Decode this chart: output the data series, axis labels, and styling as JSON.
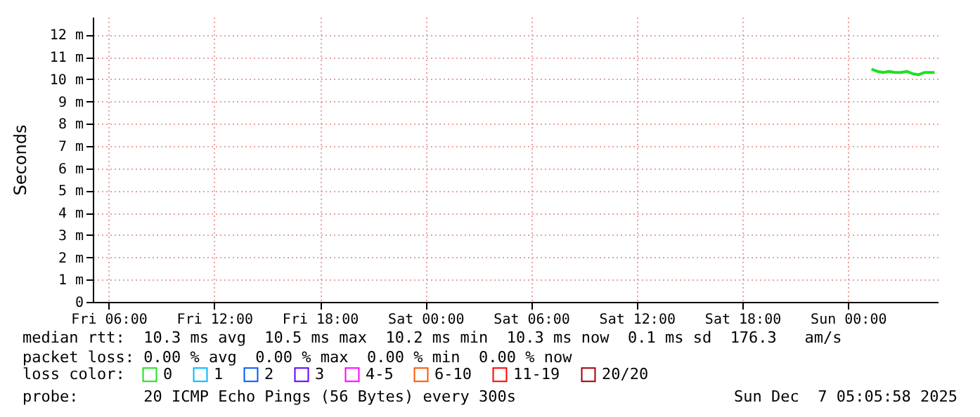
{
  "chart_data": {
    "type": "line",
    "ylabel": "Seconds",
    "x": [
      "2025-12-07T01:20",
      "2025-12-07T01:40",
      "2025-12-07T02:00",
      "2025-12-07T02:20",
      "2025-12-07T02:40",
      "2025-12-07T03:00",
      "2025-12-07T03:20",
      "2025-12-07T03:40",
      "2025-12-07T04:00",
      "2025-12-07T04:20",
      "2025-12-07T04:40",
      "2025-12-07T04:55"
    ],
    "series": [
      {
        "name": "0",
        "color": "#20e020",
        "values": [
          10.45,
          10.35,
          10.3,
          10.35,
          10.3,
          10.3,
          10.35,
          10.25,
          10.2,
          10.3,
          10.3,
          10.3
        ]
      },
      {
        "name": "1",
        "color": "#00b8ff",
        "values": [
          null,
          null,
          null,
          null,
          null,
          null,
          null,
          null,
          null,
          null,
          null,
          null
        ]
      },
      {
        "name": "2",
        "color": "#0059ff",
        "values": [
          null,
          null,
          null,
          null,
          null,
          null,
          null,
          null,
          null,
          null,
          null,
          null
        ]
      },
      {
        "name": "3",
        "color": "#5e00ff",
        "values": [
          null,
          null,
          null,
          null,
          null,
          null,
          null,
          null,
          null,
          null,
          null,
          null
        ]
      },
      {
        "name": "4-5",
        "color": "#ff00ff",
        "values": [
          null,
          null,
          null,
          null,
          null,
          null,
          null,
          null,
          null,
          null,
          null,
          null
        ]
      },
      {
        "name": "6-10",
        "color": "#ff5500",
        "values": [
          null,
          null,
          null,
          null,
          null,
          null,
          null,
          null,
          null,
          null,
          null,
          null
        ]
      },
      {
        "name": "11-19",
        "color": "#ff0000",
        "values": [
          null,
          null,
          null,
          null,
          null,
          null,
          null,
          null,
          null,
          null,
          null,
          null
        ]
      },
      {
        "name": "20/20",
        "color": "#a10000",
        "values": [
          null,
          null,
          null,
          null,
          null,
          null,
          null,
          null,
          null,
          null,
          null,
          null
        ]
      }
    ],
    "legend_title": "loss color:",
    "legend": "bottom",
    "grid": true,
    "xlim": [
      "2025-12-05T05:06",
      "2025-12-07T05:06"
    ],
    "xticks": [
      {
        "value": "2025-12-05T06:00",
        "label": "Fri 06:00"
      },
      {
        "value": "2025-12-05T12:00",
        "label": "Fri 12:00"
      },
      {
        "value": "2025-12-05T18:00",
        "label": "Fri 18:00"
      },
      {
        "value": "2025-12-06T00:00",
        "label": "Sat 00:00"
      },
      {
        "value": "2025-12-06T06:00",
        "label": "Sat 06:00"
      },
      {
        "value": "2025-12-06T12:00",
        "label": "Sat 12:00"
      },
      {
        "value": "2025-12-06T18:00",
        "label": "Sat 18:00"
      },
      {
        "value": "2025-12-07T00:00",
        "label": "Sun 00:00"
      }
    ],
    "ylim": [
      0,
      12.8
    ],
    "yticks": [
      0,
      {
        "value": 1,
        "label": "1 m"
      },
      {
        "value": 2,
        "label": "2 m"
      },
      {
        "value": 3,
        "label": "3 m"
      },
      {
        "value": 4,
        "label": "4 m"
      },
      {
        "value": 5,
        "label": "5 m"
      },
      {
        "value": 6,
        "label": "6 m"
      },
      {
        "value": 7,
        "label": "7 m"
      },
      {
        "value": 8,
        "label": "8 m"
      },
      {
        "value": 9,
        "label": "9 m"
      },
      {
        "value": 10,
        "label": "10 m"
      },
      {
        "value": 11,
        "label": "11 m"
      },
      {
        "value": 12,
        "label": "12 m"
      }
    ],
    "annotations": [
      "median rtt:  10.3 ms avg  10.5 ms max  10.2 ms min  10.3 ms now  0.1 ms sd  176.3   am/s",
      "packet loss: 0.00 % avg  0.00 % max  0.00 % min  0.00 % now",
      "probe:       20 ICMP Echo Pings (56 Bytes) every 300s",
      "Sun Dec  7 05:05:58 2025"
    ]
  }
}
